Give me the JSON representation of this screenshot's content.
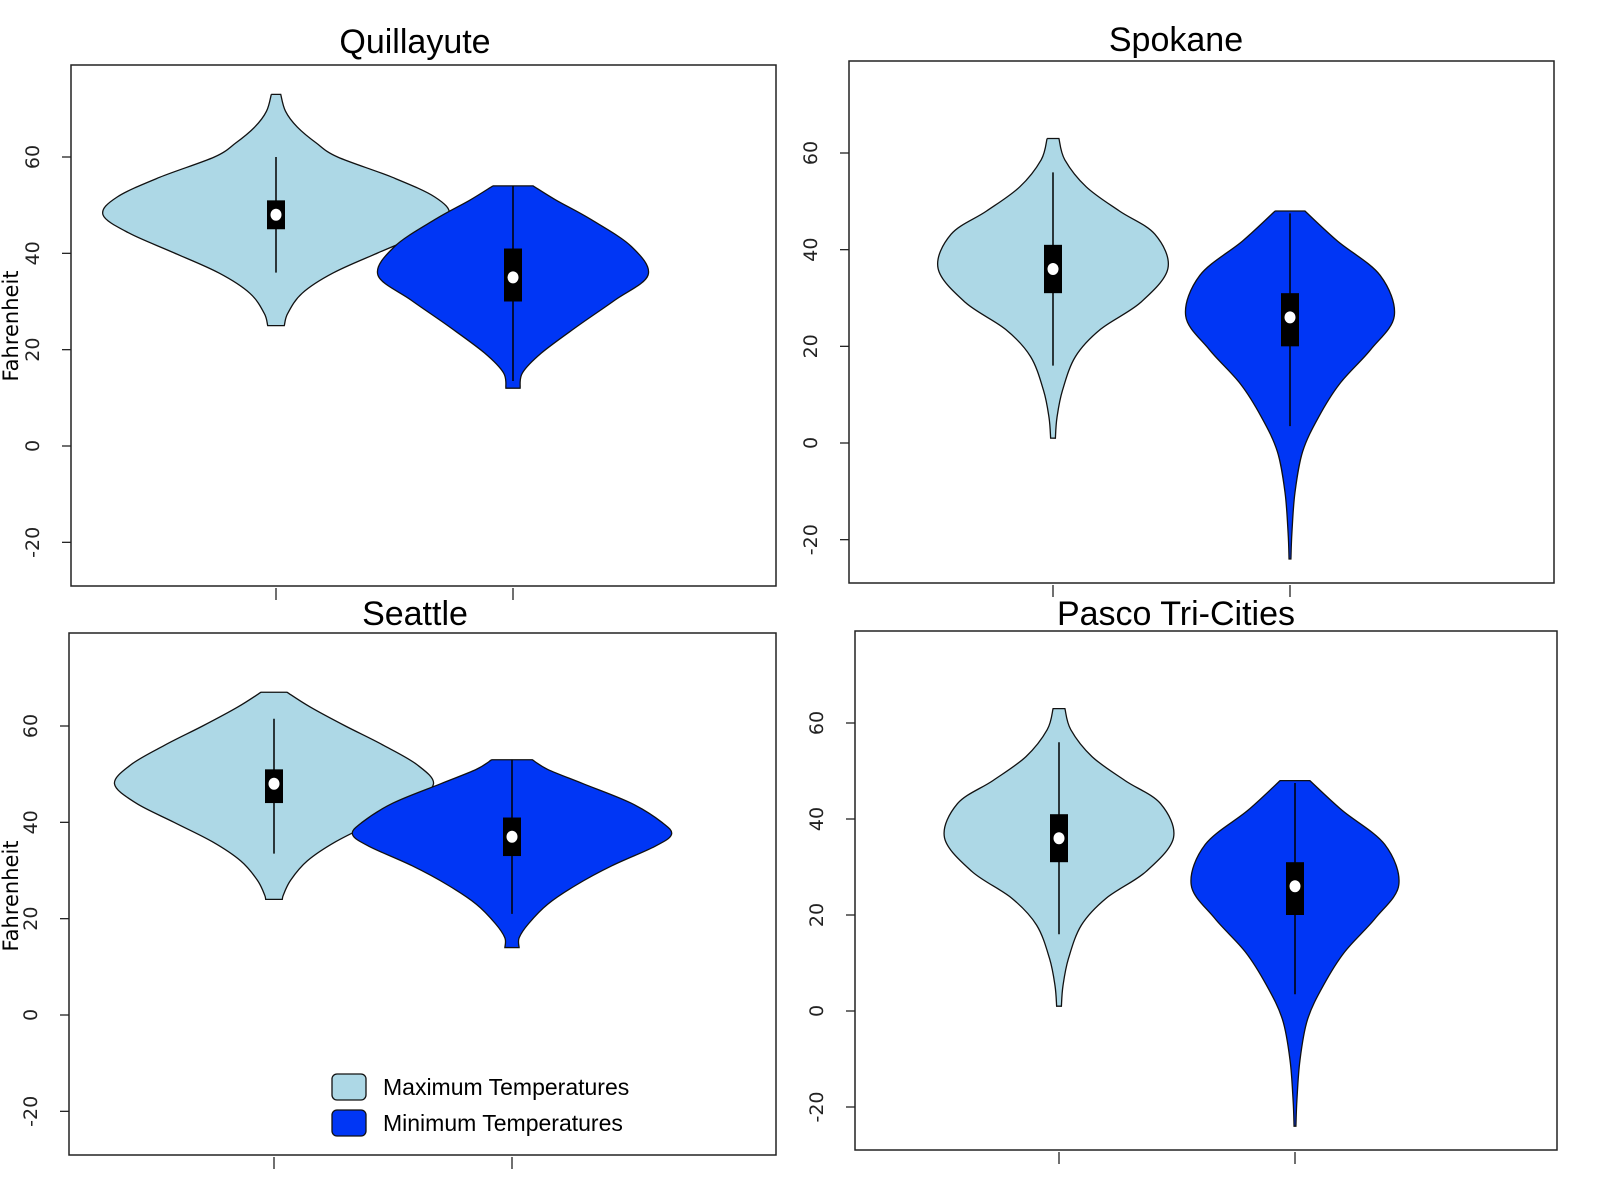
{
  "chart_data": {
    "type": "violin",
    "layout": "2x2 grid",
    "ylabel": "Fahrenheit",
    "ylim": [
      -29,
      79
    ],
    "yticks": [
      -20,
      0,
      20,
      40,
      60
    ],
    "categories": [
      "Maximum Temperatures",
      "Minimum Temperatures"
    ],
    "colors": {
      "max": "#ADD8E6",
      "min": "#0036F5",
      "box": "#000000",
      "median": "#FFFFFF"
    },
    "legend": {
      "placement": "bottom-right of Seattle panel",
      "entries": [
        "Maximum Temperatures",
        "Minimum Temperatures"
      ]
    },
    "panels": [
      {
        "title": "Quillayute",
        "show_ylabel": true,
        "violins": [
          {
            "series": "Maximum Temperatures",
            "min": 25,
            "max": 73,
            "whisker_low": 36,
            "whisker_high": 60,
            "q1": 45,
            "median": 48,
            "q3": 51,
            "density": [
              [
                73,
                0.02
              ],
              [
                69.5,
                0.04
              ],
              [
                66.2,
                0.09
              ],
              [
                62.9,
                0.17
              ],
              [
                60,
                0.26
              ],
              [
                55.8,
                0.49
              ],
              [
                51.7,
                0.67
              ],
              [
                48,
                0.73
              ],
              [
                44.2,
                0.62
              ],
              [
                40.1,
                0.43
              ],
              [
                35.9,
                0.24
              ],
              [
                31.7,
                0.11
              ],
              [
                27.6,
                0.05
              ],
              [
                25,
                0.035
              ]
            ]
          },
          {
            "series": "Minimum Temperatures",
            "min": 12,
            "max": 54,
            "whisker_low": 13.5,
            "whisker_high": 54,
            "q1": 30,
            "median": 35,
            "q3": 41,
            "density": [
              [
                54,
                0.085
              ],
              [
                51.1,
                0.18
              ],
              [
                47,
                0.33
              ],
              [
                41.4,
                0.5
              ],
              [
                35.5,
                0.57
              ],
              [
                30.3,
                0.43
              ],
              [
                24.8,
                0.27
              ],
              [
                19.3,
                0.12
              ],
              [
                15.2,
                0.04
              ],
              [
                12,
                0.03
              ]
            ]
          }
        ]
      },
      {
        "title": "Spokane",
        "show_ylabel": false,
        "violins": [
          {
            "series": "Maximum Temperatures",
            "min": 1,
            "max": 63,
            "whisker_low": 16,
            "whisker_high": 56,
            "q1": 31,
            "median": 36,
            "q3": 41,
            "density": [
              [
                63,
                0.025
              ],
              [
                58.6,
                0.05
              ],
              [
                53,
                0.14
              ],
              [
                48,
                0.28
              ],
              [
                43.2,
                0.43
              ],
              [
                36.1,
                0.485
              ],
              [
                29.1,
                0.37
              ],
              [
                23.5,
                0.2
              ],
              [
                17.9,
                0.095
              ],
              [
                10.9,
                0.04
              ],
              [
                5.3,
                0.017
              ],
              [
                1,
                0.01
              ]
            ]
          },
          {
            "series": "Minimum Temperatures",
            "min": -24,
            "max": 48,
            "whisker_low": 3.5,
            "whisker_high": 47.5,
            "q1": 20,
            "median": 26,
            "q3": 31,
            "density": [
              [
                48,
                0.063
              ],
              [
                41.8,
                0.2
              ],
              [
                34.7,
                0.38
              ],
              [
                26.3,
                0.44
              ],
              [
                19.3,
                0.34
              ],
              [
                12.3,
                0.21
              ],
              [
                5.3,
                0.12
              ],
              [
                -1.8,
                0.053
              ],
              [
                -10.2,
                0.021
              ],
              [
                -18.6,
                0.008
              ],
              [
                -24,
                0.004
              ]
            ]
          }
        ]
      },
      {
        "title": "Seattle",
        "show_ylabel": true,
        "violins": [
          {
            "series": "Maximum Temperatures",
            "min": 24,
            "max": 67,
            "whisker_low": 33.5,
            "whisker_high": 61.5,
            "q1": 44,
            "median": 48,
            "q3": 51,
            "density": [
              [
                67,
                0.055
              ],
              [
                64,
                0.15
              ],
              [
                60,
                0.3
              ],
              [
                56,
                0.46
              ],
              [
                52,
                0.6
              ],
              [
                48,
                0.67
              ],
              [
                44,
                0.58
              ],
              [
                40,
                0.42
              ],
              [
                36,
                0.26
              ],
              [
                32,
                0.14
              ],
              [
                28,
                0.07
              ],
              [
                25,
                0.04
              ],
              [
                24,
                0.035
              ]
            ]
          },
          {
            "series": "Minimum Temperatures",
            "min": 14,
            "max": 53,
            "whisker_low": 21,
            "whisker_high": 53,
            "q1": 33,
            "median": 37,
            "q3": 41,
            "density": [
              [
                53,
                0.085
              ],
              [
                51,
                0.15
              ],
              [
                48,
                0.3
              ],
              [
                44,
                0.5
              ],
              [
                40,
                0.63
              ],
              [
                37.5,
                0.67
              ],
              [
                35,
                0.6
              ],
              [
                31,
                0.42
              ],
              [
                27,
                0.27
              ],
              [
                23,
                0.15
              ],
              [
                19,
                0.07
              ],
              [
                16,
                0.03
              ],
              [
                14,
                0.03
              ]
            ]
          }
        ]
      },
      {
        "title": "Pasco Tri-Cities",
        "show_ylabel": false,
        "violins": [
          {
            "series": "Maximum Temperatures",
            "min": 1,
            "max": 63,
            "whisker_low": 16,
            "whisker_high": 56,
            "q1": 31,
            "median": 36,
            "q3": 41,
            "density": [
              [
                63,
                0.025
              ],
              [
                58.6,
                0.05
              ],
              [
                53,
                0.14
              ],
              [
                48,
                0.28
              ],
              [
                43.2,
                0.43
              ],
              [
                36.1,
                0.485
              ],
              [
                29.1,
                0.37
              ],
              [
                23.5,
                0.2
              ],
              [
                17.9,
                0.095
              ],
              [
                10.9,
                0.04
              ],
              [
                5.3,
                0.017
              ],
              [
                1,
                0.01
              ]
            ]
          },
          {
            "series": "Minimum Temperatures",
            "min": -24,
            "max": 48,
            "whisker_low": 3.5,
            "whisker_high": 47.5,
            "q1": 20,
            "median": 26,
            "q3": 31,
            "density": [
              [
                48,
                0.063
              ],
              [
                41.8,
                0.2
              ],
              [
                34.7,
                0.38
              ],
              [
                26.3,
                0.44
              ],
              [
                19.3,
                0.34
              ],
              [
                12.3,
                0.21
              ],
              [
                5.3,
                0.12
              ],
              [
                -1.8,
                0.053
              ],
              [
                -10.2,
                0.021
              ],
              [
                -18.6,
                0.008
              ],
              [
                -24,
                0.004
              ]
            ]
          }
        ]
      }
    ]
  }
}
